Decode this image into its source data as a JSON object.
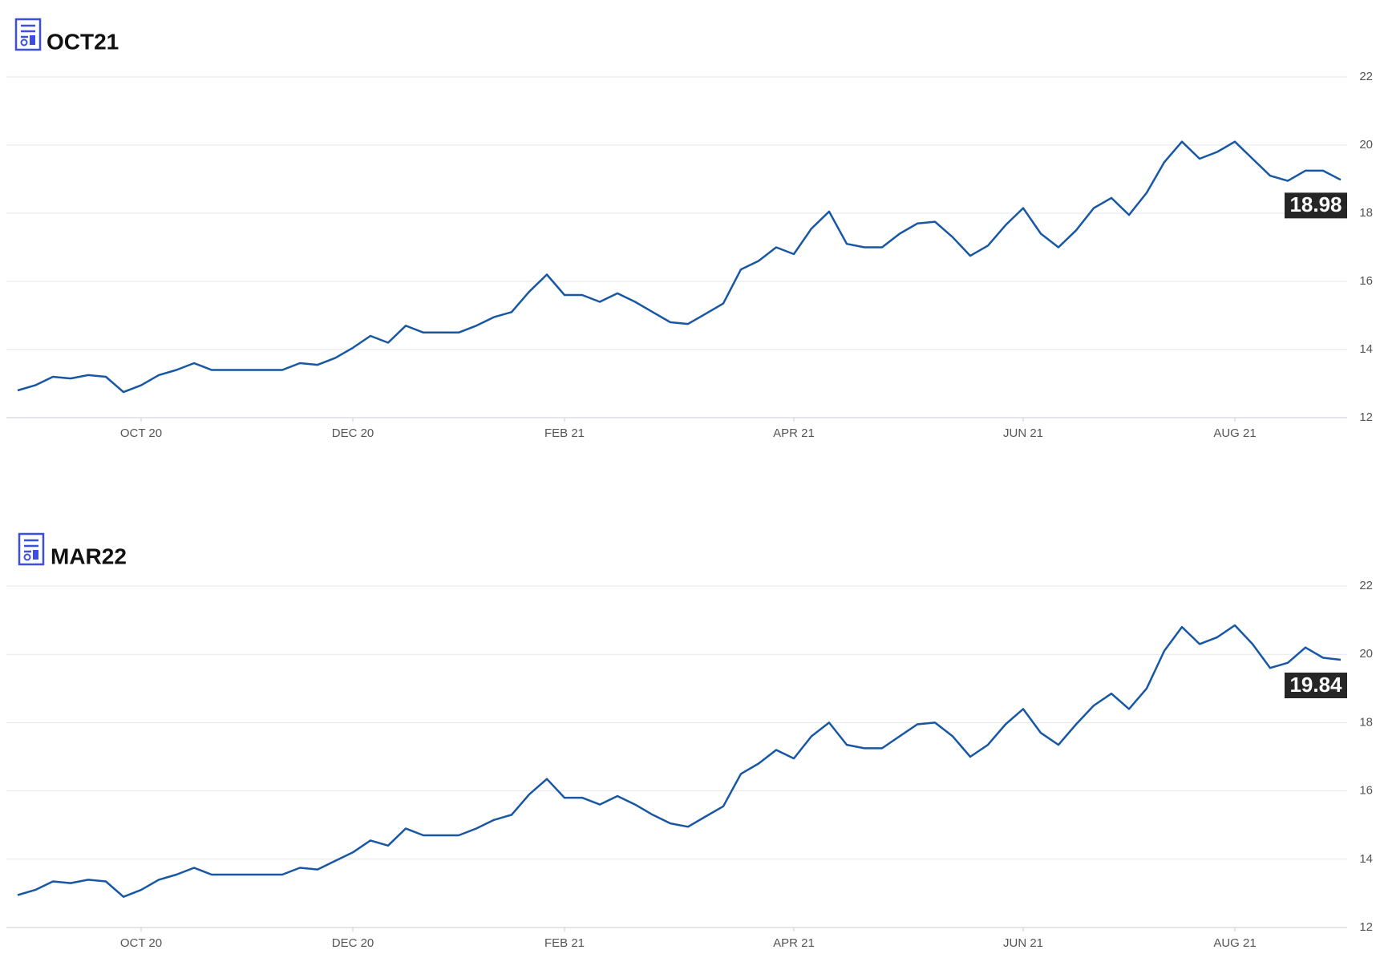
{
  "chart_data": [
    {
      "type": "line",
      "title": "OCT21",
      "color": "#1757a3",
      "grid": true,
      "ylim": [
        12,
        22
      ],
      "yticks": [
        12,
        14,
        16,
        18,
        20,
        22
      ],
      "categories": [
        null,
        null,
        null,
        null,
        null,
        null,
        null,
        "OCT 20",
        null,
        null,
        null,
        null,
        null,
        null,
        null,
        null,
        null,
        null,
        null,
        "DEC 20",
        null,
        null,
        null,
        null,
        null,
        null,
        null,
        null,
        null,
        null,
        null,
        "FEB 21",
        null,
        null,
        null,
        null,
        null,
        null,
        null,
        null,
        null,
        null,
        null,
        null,
        "APR 21",
        null,
        null,
        null,
        null,
        null,
        null,
        null,
        null,
        null,
        null,
        null,
        null,
        "JUN 21",
        null,
        null,
        null,
        null,
        null,
        null,
        null,
        null,
        null,
        null,
        null,
        "AUG 21",
        null,
        null,
        null,
        null,
        null,
        null
      ],
      "values": [
        12.8,
        12.95,
        13.2,
        13.15,
        13.25,
        13.2,
        12.75,
        12.95,
        13.25,
        13.4,
        13.6,
        13.4,
        13.4,
        13.4,
        13.4,
        13.4,
        13.6,
        13.55,
        13.75,
        14.05,
        14.4,
        14.2,
        14.7,
        14.5,
        14.5,
        14.5,
        14.7,
        14.95,
        15.1,
        15.7,
        16.2,
        15.6,
        15.6,
        15.4,
        15.65,
        15.4,
        15.1,
        14.8,
        14.75,
        15.05,
        15.35,
        16.35,
        16.6,
        17.0,
        16.8,
        17.55,
        18.05,
        17.1,
        17.0,
        17.0,
        17.4,
        17.7,
        17.75,
        17.3,
        16.75,
        17.05,
        17.65,
        18.15,
        17.4,
        17.0,
        17.5,
        18.15,
        18.45,
        17.95,
        18.6,
        19.5,
        20.1,
        19.6,
        19.8,
        20.1,
        19.6,
        19.1,
        18.95,
        19.25,
        19.25,
        18.98
      ]
    },
    {
      "type": "line",
      "title": "MAR22",
      "color": "#1757a3",
      "grid": true,
      "ylim": [
        12,
        22
      ],
      "yticks": [
        12,
        14,
        16,
        18,
        20,
        22
      ],
      "categories": [
        null,
        null,
        null,
        null,
        null,
        null,
        null,
        "OCT 20",
        null,
        null,
        null,
        null,
        null,
        null,
        null,
        null,
        null,
        null,
        null,
        "DEC 20",
        null,
        null,
        null,
        null,
        null,
        null,
        null,
        null,
        null,
        null,
        null,
        "FEB 21",
        null,
        null,
        null,
        null,
        null,
        null,
        null,
        null,
        null,
        null,
        null,
        null,
        "APR 21",
        null,
        null,
        null,
        null,
        null,
        null,
        null,
        null,
        null,
        null,
        null,
        null,
        "JUN 21",
        null,
        null,
        null,
        null,
        null,
        null,
        null,
        null,
        null,
        null,
        null,
        "AUG 21",
        null,
        null,
        null,
        null,
        null,
        null
      ],
      "values": [
        12.95,
        13.1,
        13.35,
        13.3,
        13.4,
        13.35,
        12.9,
        13.1,
        13.4,
        13.55,
        13.75,
        13.55,
        13.55,
        13.55,
        13.55,
        13.55,
        13.75,
        13.7,
        13.95,
        14.2,
        14.55,
        14.4,
        14.9,
        14.7,
        14.7,
        14.7,
        14.9,
        15.15,
        15.3,
        15.9,
        16.35,
        15.8,
        15.8,
        15.6,
        15.85,
        15.6,
        15.3,
        15.05,
        14.95,
        15.25,
        15.55,
        16.5,
        16.8,
        17.2,
        16.95,
        17.6,
        18.0,
        17.35,
        17.25,
        17.25,
        17.6,
        17.95,
        18.0,
        17.6,
        17.0,
        17.35,
        17.95,
        18.4,
        17.7,
        17.35,
        17.95,
        18.5,
        18.85,
        18.4,
        19.0,
        20.1,
        20.8,
        20.3,
        20.5,
        20.85,
        20.3,
        19.6,
        19.75,
        20.2,
        19.9,
        19.84
      ]
    }
  ]
}
